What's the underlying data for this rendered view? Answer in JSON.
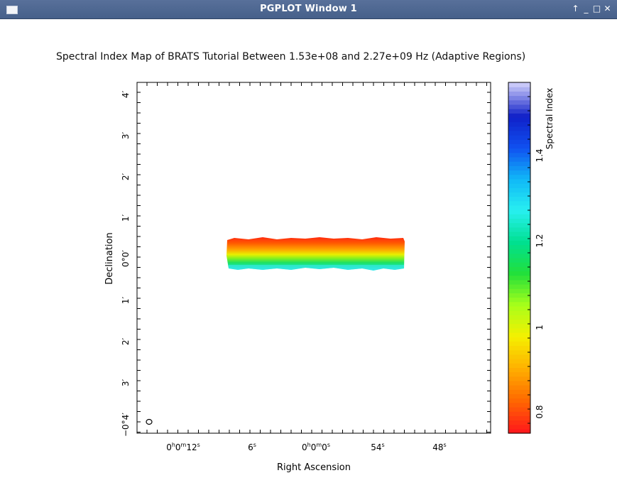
{
  "window": {
    "title": "PGPLOT Window 1",
    "controls": [
      {
        "name": "raise-button",
        "icon": "arrow-up-icon",
        "glyph": "↑"
      },
      {
        "name": "minimize-button",
        "icon": "minimize-icon",
        "glyph": "_"
      },
      {
        "name": "maximize-button",
        "icon": "maximize-icon",
        "glyph": "□"
      },
      {
        "name": "close-button",
        "icon": "close-icon",
        "glyph": "✕"
      }
    ]
  },
  "plot": {
    "title": "Spectral Index Map of BRATS Tutorial Between 1.53e+08 and 2.27e+09 Hz (Adaptive Regions)",
    "xlabel": "Right Ascension",
    "ylabel": "Declination",
    "x_ticks": [
      {
        "main": "0",
        "sup": "h",
        "main2": "0",
        "sup2": "m",
        "main3": "12",
        "sup3": "s"
      },
      {
        "main": "6",
        "sup": "s"
      },
      {
        "main": "0",
        "sup": "h",
        "main2": "0",
        "sup2": "m",
        "main3": "0",
        "sup3": "s"
      },
      {
        "main": "54",
        "sup": "s"
      },
      {
        "main": "48",
        "sup": "s"
      }
    ],
    "y_ticks": [
      "4′",
      "3′",
      "2′",
      "1′",
      "0°0′",
      "1′",
      "2′",
      "3′",
      "−0°4′"
    ],
    "colorbar": {
      "label": "Spectral Index",
      "ticks": [
        "0.8",
        "1",
        "1.2",
        "1.4"
      ],
      "range": [
        0.75,
        1.55
      ],
      "palette": [
        "#ff1a1a",
        "#ff6a00",
        "#ffb000",
        "#f5f000",
        "#a8ff1a",
        "#22e03a",
        "#00e090",
        "#28f0f0",
        "#10b8f8",
        "#1050f0",
        "#1020c8",
        "#c8c8f8"
      ]
    },
    "beam_marker": "beam-ellipse-icon"
  }
}
